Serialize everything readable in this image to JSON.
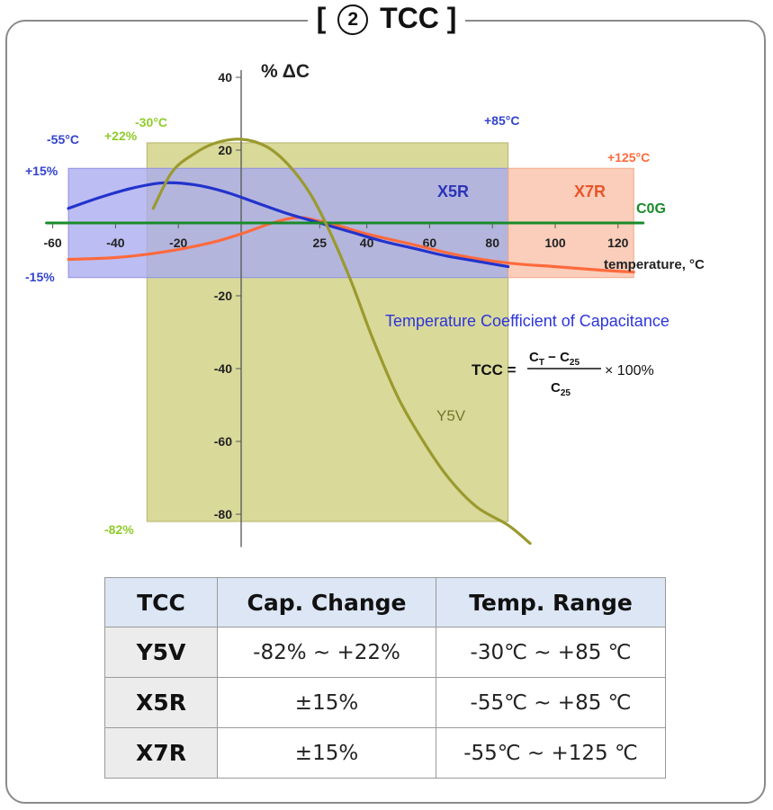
{
  "page": {
    "title_prefix": "[",
    "title_circle": "2",
    "title_text": "TCC ]"
  },
  "chart_data": {
    "type": "line",
    "ylabel": "% ΔC",
    "xlabel": "temperature, °C",
    "xlim": [
      -62,
      128
    ],
    "ylim": [
      -88,
      42
    ],
    "x_ticks": [
      -60,
      -40,
      -20,
      25,
      40,
      60,
      80,
      100,
      120
    ],
    "y_ticks": [
      40,
      20,
      -20,
      -40,
      -60,
      -80
    ],
    "regions": [
      {
        "name": "Y5V",
        "x": [
          -30,
          85
        ],
        "y": [
          -82,
          22
        ],
        "color": "#d9d99a"
      },
      {
        "name": "X5R",
        "x": [
          -55,
          85
        ],
        "y": [
          -15,
          15
        ],
        "color": "#a9aaf0"
      },
      {
        "name": "X7R",
        "x": [
          85,
          125
        ],
        "y": [
          -15,
          15
        ],
        "color": "#f9c0a6"
      }
    ],
    "region_labels": {
      "x5r": "X5R",
      "x7r": "X7R",
      "y5v": "Y5V",
      "c0g": "C0G",
      "y5v_top": "+22%",
      "y5v_bottom": "-82%",
      "y5v_left": "-30°C",
      "x5r_left": "-55°C",
      "x5r_right": "+85°C",
      "x7r_right": "+125°C",
      "top_15": "+15%",
      "bottom_15": "-15%"
    },
    "series": [
      {
        "name": "Y5V",
        "color": "#9a9a2e",
        "x": [
          -28,
          -22,
          -15,
          -8,
          0,
          8,
          15,
          22,
          28,
          35,
          42,
          50,
          58,
          66,
          75,
          85,
          92
        ],
        "y": [
          4,
          14,
          19,
          22,
          23,
          21,
          16,
          8,
          -2,
          -16,
          -32,
          -48,
          -60,
          -70,
          -78,
          -83,
          -88
        ]
      },
      {
        "name": "X5R",
        "color": "#2233cc",
        "x": [
          -55,
          -45,
          -35,
          -25,
          -15,
          -5,
          5,
          15,
          25,
          35,
          45,
          55,
          65,
          75,
          85
        ],
        "y": [
          4,
          7,
          9.5,
          11,
          10.5,
          8.5,
          5.5,
          2.5,
          0,
          -2.5,
          -5,
          -7,
          -9,
          -10.5,
          -12
        ]
      },
      {
        "name": "X7R",
        "color": "#ff6a3d",
        "x": [
          -55,
          -40,
          -25,
          -10,
          0,
          10,
          18,
          25,
          32,
          40,
          55,
          70,
          85,
          100,
          115,
          125
        ],
        "y": [
          -10,
          -9.5,
          -8,
          -5.5,
          -3,
          0,
          1.5,
          0.5,
          -1,
          -3,
          -6,
          -9,
          -11,
          -12,
          -13,
          -13.5
        ]
      },
      {
        "name": "C0G",
        "color": "#1a8a2a",
        "x": [
          -62,
          128
        ],
        "y": [
          0,
          0
        ]
      }
    ],
    "annotations": {
      "tcc_heading": "Temperature Coefficient of Capacitance",
      "formula_lhs": "TCC =",
      "formula_c": "C",
      "formula_t": "T",
      "formula_minus": " − ",
      "formula_25": "25",
      "formula_times": "× 100%"
    }
  },
  "table": {
    "headers": [
      "TCC",
      "Cap. Change",
      "Temp. Range"
    ],
    "rows": [
      [
        "Y5V",
        "-82% ~ +22%",
        "-30℃ ~ +85 ℃"
      ],
      [
        "X5R",
        "±15%",
        "-55℃ ~ +85 ℃"
      ],
      [
        "X7R",
        "±15%",
        "-55℃ ~ +125 ℃"
      ]
    ]
  },
  "colors": {
    "region_label_blue": "#3344cc",
    "region_label_green": "#8fcc2a",
    "region_label_orange": "#ff6a3d",
    "c0g_green": "#1a8a2a",
    "y5v_olive": "#77772a"
  }
}
